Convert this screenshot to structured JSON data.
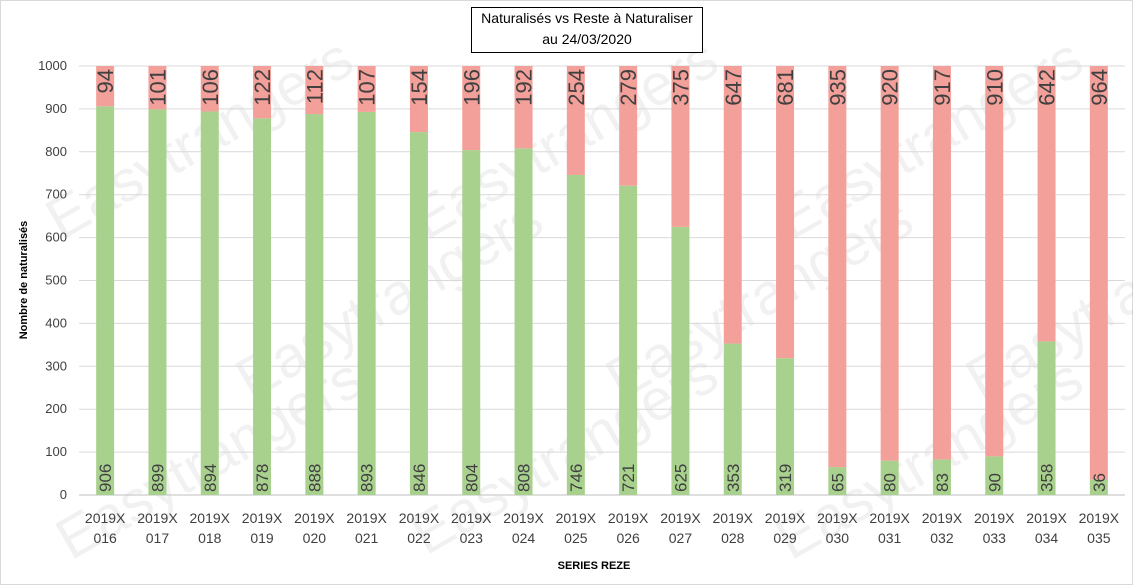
{
  "chart_data": {
    "type": "bar",
    "stacked": true,
    "title": "Naturalisés vs Reste à Naturaliser",
    "subtitle": "au 24/03/2020",
    "xlabel": "SERIES REZE",
    "ylabel": "Nombre de naturalisés",
    "ylim": [
      0,
      1000
    ],
    "yticks": [
      0,
      100,
      200,
      300,
      400,
      500,
      600,
      700,
      800,
      900,
      1000
    ],
    "grid": true,
    "categories": [
      [
        "2019X",
        "016"
      ],
      [
        "2019X",
        "017"
      ],
      [
        "2019X",
        "018"
      ],
      [
        "2019X",
        "019"
      ],
      [
        "2019X",
        "020"
      ],
      [
        "2019X",
        "021"
      ],
      [
        "2019X",
        "022"
      ],
      [
        "2019X",
        "023"
      ],
      [
        "2019X",
        "024"
      ],
      [
        "2019X",
        "025"
      ],
      [
        "2019X",
        "026"
      ],
      [
        "2019X",
        "027"
      ],
      [
        "2019X",
        "028"
      ],
      [
        "2019X",
        "029"
      ],
      [
        "2019X",
        "030"
      ],
      [
        "2019X",
        "031"
      ],
      [
        "2019X",
        "032"
      ],
      [
        "2019X",
        "033"
      ],
      [
        "2019X",
        "034"
      ],
      [
        "2019X",
        "035"
      ]
    ],
    "series": [
      {
        "color": "#a9d18e",
        "values": [
          906,
          899,
          894,
          878,
          888,
          893,
          846,
          804,
          808,
          746,
          721,
          625,
          353,
          319,
          65,
          80,
          83,
          90,
          358,
          36
        ]
      },
      {
        "color": "#f4a09a",
        "values": [
          94,
          101,
          106,
          122,
          112,
          107,
          154,
          196,
          192,
          254,
          279,
          375,
          647,
          681,
          935,
          920,
          917,
          910,
          642,
          964
        ]
      }
    ],
    "watermark": "Easytrangers"
  }
}
